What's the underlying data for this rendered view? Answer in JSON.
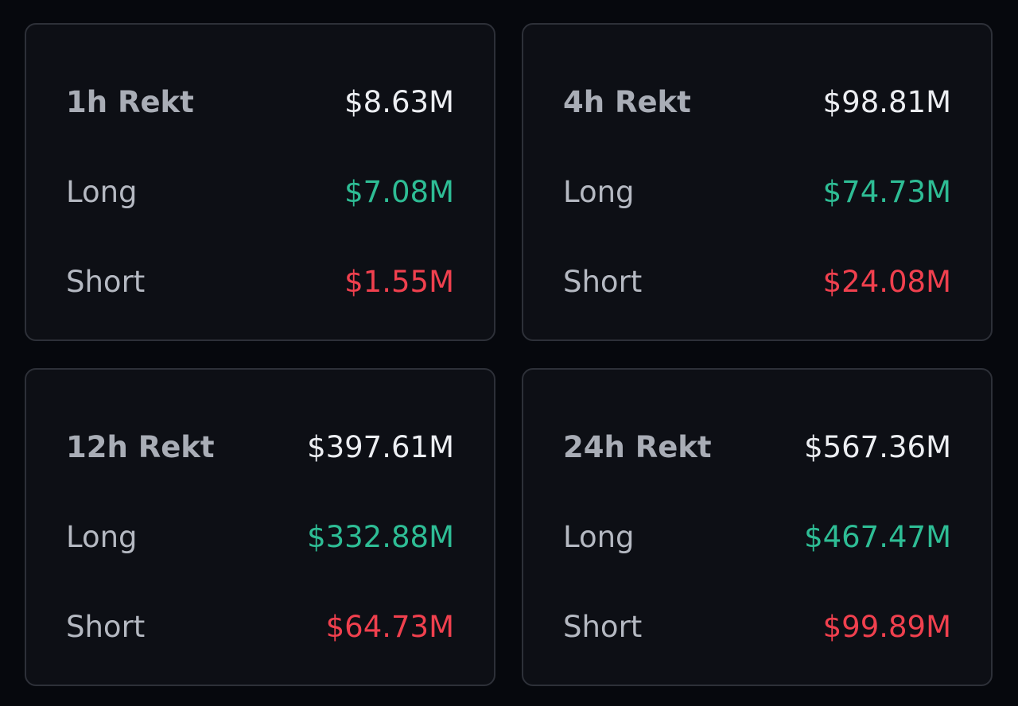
{
  "cards": [
    {
      "title": "1h Rekt",
      "total": "$8.63M",
      "long_label": "Long",
      "long": "$7.08M",
      "short_label": "Short",
      "short": "$1.55M"
    },
    {
      "title": "4h Rekt",
      "total": "$98.81M",
      "long_label": "Long",
      "long": "$74.73M",
      "short_label": "Short",
      "short": "$24.08M"
    },
    {
      "title": "12h Rekt",
      "total": "$397.61M",
      "long_label": "Long",
      "long": "$332.88M",
      "short_label": "Short",
      "short": "$64.73M"
    },
    {
      "title": "24h Rekt",
      "total": "$567.36M",
      "long_label": "Long",
      "long": "$467.47M",
      "short_label": "Short",
      "short": "$99.89M"
    }
  ]
}
